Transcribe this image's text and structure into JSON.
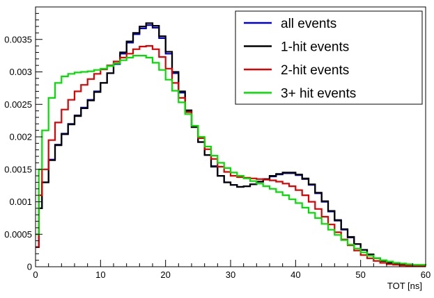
{
  "chart_data": {
    "type": "line",
    "title": "",
    "xlabel": "TOT [ns]",
    "ylabel": "",
    "xlim": [
      0,
      60
    ],
    "ylim": [
      0,
      0.004
    ],
    "x_ticks": [
      "0",
      "10",
      "20",
      "30",
      "40",
      "50",
      "60"
    ],
    "y_ticks": [
      "0",
      "0.0005",
      "0.001",
      "0.0015",
      "0.002",
      "0.0025",
      "0.003",
      "0.0035"
    ],
    "grid": false,
    "legend_position": "top-right",
    "series": [
      {
        "name": "all events",
        "color": "#0000cc",
        "x": [
          0,
          0.5,
          1,
          2,
          3,
          4,
          5,
          6,
          7,
          8,
          9,
          10,
          11,
          12,
          13,
          14,
          15,
          16,
          17,
          18,
          19,
          20,
          21,
          22,
          23,
          24,
          25,
          26,
          27,
          28,
          29,
          30,
          31,
          32,
          33,
          34,
          35,
          36,
          37,
          38,
          39,
          40,
          41,
          42,
          43,
          44,
          45,
          46,
          47,
          48,
          49,
          50,
          51,
          52,
          53,
          54,
          55,
          56,
          57,
          58,
          59,
          60
        ],
        "y": [
          0.0003,
          0.0009,
          0.0013,
          0.00165,
          0.00188,
          0.00205,
          0.0022,
          0.00233,
          0.00245,
          0.00257,
          0.0027,
          0.00283,
          0.00298,
          0.00312,
          0.00328,
          0.00345,
          0.00358,
          0.00367,
          0.00372,
          0.00368,
          0.00352,
          0.00328,
          0.00298,
          0.00268,
          0.0024,
          0.00215,
          0.00192,
          0.00172,
          0.00155,
          0.0014,
          0.0013,
          0.00126,
          0.00123,
          0.00124,
          0.00127,
          0.00131,
          0.00135,
          0.00139,
          0.00142,
          0.00144,
          0.00144,
          0.00141,
          0.00135,
          0.00126,
          0.00113,
          0.001,
          0.00085,
          0.00071,
          0.00057,
          0.00045,
          0.00035,
          0.00026,
          0.00019,
          0.00013,
          9e-05,
          6e-05,
          4e-05,
          3e-05,
          2e-05,
          1.5e-05,
          1e-05,
          1e-05
        ]
      },
      {
        "name": "1-hit events",
        "color": "#000000",
        "x": [
          0,
          0.5,
          1,
          2,
          3,
          4,
          5,
          6,
          7,
          8,
          9,
          10,
          11,
          12,
          13,
          14,
          15,
          16,
          17,
          18,
          19,
          20,
          21,
          22,
          23,
          24,
          25,
          26,
          27,
          28,
          29,
          30,
          31,
          32,
          33,
          34,
          35,
          36,
          37,
          38,
          39,
          40,
          41,
          42,
          43,
          44,
          45,
          46,
          47,
          48,
          49,
          50,
          51,
          52,
          53,
          54,
          55,
          56,
          57,
          58,
          59,
          60
        ],
        "y": [
          0.0003,
          0.0009,
          0.0013,
          0.00164,
          0.00187,
          0.00204,
          0.00219,
          0.00232,
          0.00244,
          0.00256,
          0.00269,
          0.00283,
          0.00298,
          0.00313,
          0.0033,
          0.00347,
          0.0036,
          0.0037,
          0.00375,
          0.00371,
          0.00355,
          0.00331,
          0.003,
          0.0027,
          0.00241,
          0.00215,
          0.00192,
          0.00172,
          0.00154,
          0.0014,
          0.0013,
          0.00126,
          0.00123,
          0.00124,
          0.00127,
          0.00131,
          0.00135,
          0.0014,
          0.00143,
          0.00145,
          0.00145,
          0.00142,
          0.00136,
          0.00127,
          0.00114,
          0.00101,
          0.00086,
          0.00072,
          0.00058,
          0.00046,
          0.00035,
          0.00026,
          0.00019,
          0.00013,
          9e-05,
          6e-05,
          4e-05,
          3e-05,
          2e-05,
          1.5e-05,
          1e-05,
          1e-05
        ]
      },
      {
        "name": "2-hit events",
        "color": "#e00000",
        "x": [
          0,
          0.5,
          1,
          2,
          3,
          4,
          5,
          6,
          7,
          8,
          9,
          10,
          11,
          12,
          13,
          14,
          15,
          16,
          17,
          18,
          19,
          20,
          21,
          22,
          23,
          24,
          25,
          26,
          27,
          28,
          29,
          30,
          31,
          32,
          33,
          34,
          35,
          36,
          37,
          38,
          39,
          40,
          41,
          42,
          43,
          44,
          45,
          46,
          47,
          48,
          49,
          50,
          51,
          52,
          53,
          54,
          55,
          56,
          57,
          58,
          59,
          60
        ],
        "y": [
          0.0003,
          0.0011,
          0.0015,
          0.00195,
          0.00222,
          0.00242,
          0.00257,
          0.0027,
          0.0028,
          0.00289,
          0.00297,
          0.00304,
          0.0031,
          0.00316,
          0.00322,
          0.00328,
          0.00335,
          0.00339,
          0.0034,
          0.00335,
          0.00323,
          0.00305,
          0.00283,
          0.0026,
          0.00238,
          0.00217,
          0.00198,
          0.00181,
          0.00166,
          0.00154,
          0.00146,
          0.0014,
          0.00138,
          0.00137,
          0.00136,
          0.00135,
          0.00134,
          0.00133,
          0.00131,
          0.00128,
          0.00124,
          0.00118,
          0.0011,
          0.001,
          0.00089,
          0.00077,
          0.00065,
          0.00053,
          0.00042,
          0.00033,
          0.00025,
          0.00018,
          0.00013,
          9e-05,
          6e-05,
          4e-05,
          3e-05,
          2e-05,
          1.5e-05,
          1e-05,
          1e-05,
          1e-05
        ]
      },
      {
        "name": "3+ hit events",
        "color": "#00e000",
        "x": [
          0,
          0.5,
          1,
          2,
          3,
          4,
          5,
          6,
          7,
          8,
          9,
          10,
          11,
          12,
          13,
          14,
          15,
          16,
          17,
          18,
          19,
          20,
          21,
          22,
          23,
          24,
          25,
          26,
          27,
          28,
          29,
          30,
          31,
          32,
          33,
          34,
          35,
          36,
          37,
          38,
          39,
          40,
          41,
          42,
          43,
          44,
          45,
          46,
          47,
          48,
          49,
          50,
          51,
          52,
          53,
          54,
          55,
          56,
          57,
          58,
          59,
          60
        ],
        "y": [
          0.0005,
          0.0015,
          0.0021,
          0.0026,
          0.00283,
          0.00293,
          0.00297,
          0.00299,
          0.003,
          0.00301,
          0.00303,
          0.00305,
          0.00309,
          0.00313,
          0.00318,
          0.00322,
          0.00325,
          0.00325,
          0.00322,
          0.00314,
          0.00303,
          0.00288,
          0.00271,
          0.00253,
          0.00235,
          0.00217,
          0.002,
          0.00185,
          0.00171,
          0.0016,
          0.00152,
          0.00145,
          0.0014,
          0.00136,
          0.00132,
          0.00128,
          0.00124,
          0.0012,
          0.00115,
          0.0011,
          0.00104,
          0.00098,
          0.00091,
          0.00083,
          0.00075,
          0.00066,
          0.00057,
          0.00049,
          0.00041,
          0.00034,
          0.00028,
          0.00022,
          0.00017,
          0.00013,
          0.0001,
          8e-05,
          6e-05,
          5e-05,
          4e-05,
          3e-05,
          3e-05,
          2e-05
        ]
      }
    ]
  }
}
